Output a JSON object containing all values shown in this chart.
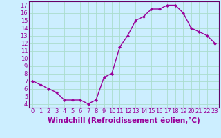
{
  "x": [
    0,
    1,
    2,
    3,
    4,
    5,
    6,
    7,
    8,
    9,
    10,
    11,
    12,
    13,
    14,
    15,
    16,
    17,
    18,
    19,
    20,
    21,
    22,
    23
  ],
  "y": [
    7.0,
    6.5,
    6.0,
    5.5,
    4.5,
    4.5,
    4.5,
    4.0,
    4.5,
    7.5,
    8.0,
    11.5,
    13.0,
    15.0,
    15.5,
    16.5,
    16.5,
    17.0,
    17.0,
    16.0,
    14.0,
    13.5,
    13.0,
    12.0
  ],
  "line_color": "#990099",
  "marker": "D",
  "marker_size": 2.0,
  "bg_color": "#cceeff",
  "grid_color": "#aaddcc",
  "xlabel": "Windchill (Refroidissement éolien,°C)",
  "xlim": [
    -0.5,
    23.5
  ],
  "ylim": [
    3.5,
    17.5
  ],
  "yticks": [
    4,
    5,
    6,
    7,
    8,
    9,
    10,
    11,
    12,
    13,
    14,
    15,
    16,
    17
  ],
  "xticks": [
    0,
    1,
    2,
    3,
    4,
    5,
    6,
    7,
    8,
    9,
    10,
    11,
    12,
    13,
    14,
    15,
    16,
    17,
    18,
    19,
    20,
    21,
    22,
    23
  ],
  "tick_label_size": 6.0,
  "xlabel_size": 7.5,
  "spine_color": "#660066",
  "line_width": 1.0
}
